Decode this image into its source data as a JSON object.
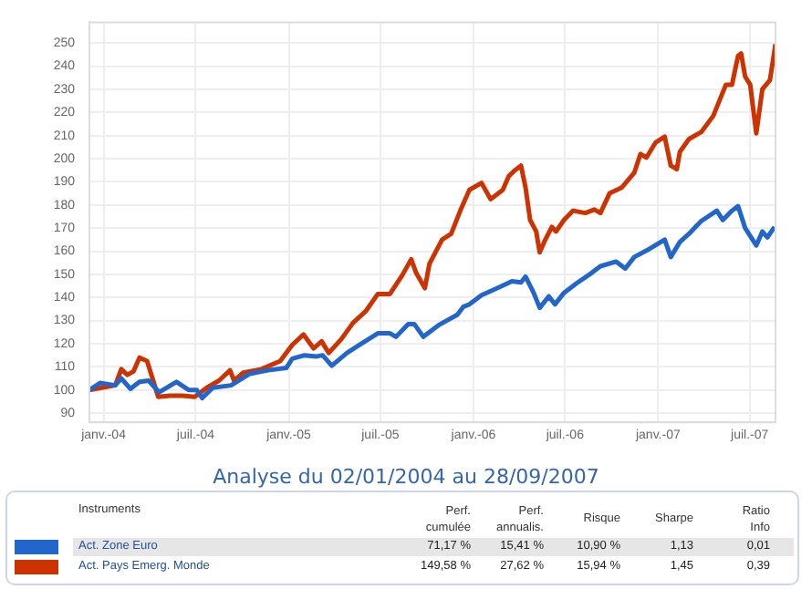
{
  "chart_data": {
    "type": "line",
    "title": "Analyse du 02/01/2004 au 28/09/2007",
    "xlim": [
      "2003-12-04",
      "2007-08-21"
    ],
    "xticks": [
      {
        "value": "2004-01-01",
        "label": "janv.-04"
      },
      {
        "value": "2004-07-01",
        "label": "juil.-04"
      },
      {
        "value": "2005-01-01",
        "label": "janv.-05"
      },
      {
        "value": "2005-07-01",
        "label": "juil.-05"
      },
      {
        "value": "2006-01-01",
        "label": "janv.-06"
      },
      {
        "value": "2006-07-01",
        "label": "juil.-06"
      },
      {
        "value": "2007-01-01",
        "label": "janv.-07"
      },
      {
        "value": "2007-07-01",
        "label": "juil.-07"
      }
    ],
    "ylim": [
      86,
      259
    ],
    "yticks": [
      90,
      100,
      110,
      120,
      130,
      140,
      150,
      160,
      170,
      180,
      190,
      200,
      210,
      220,
      230,
      240,
      250
    ],
    "grid": true,
    "legend": "bottom",
    "marker": "none",
    "line_style": "solid",
    "series": [
      {
        "name": "Act. Zone Euro",
        "color": "#2266cc",
        "x": [
          "2003-12-04",
          "2003-12-25",
          "2004-01-24",
          "2004-02-05",
          "2004-02-23",
          "2004-03-12",
          "2004-03-30",
          "2004-04-20",
          "2004-05-24",
          "2004-06-17",
          "2004-07-03",
          "2004-07-14",
          "2004-08-04",
          "2004-09-09",
          "2004-10-16",
          "2004-11-21",
          "2004-12-27",
          "2005-01-08",
          "2005-02-01",
          "2005-02-25",
          "2005-03-09",
          "2005-03-27",
          "2005-04-26",
          "2005-05-21",
          "2005-06-26",
          "2005-07-20",
          "2005-08-01",
          "2005-08-25",
          "2005-09-06",
          "2005-09-24",
          "2005-10-24",
          "2005-11-30",
          "2005-12-12",
          "2005-12-24",
          "2006-01-17",
          "2006-02-22",
          "2006-03-18",
          "2006-04-05",
          "2006-04-14",
          "2006-04-30",
          "2006-05-12",
          "2006-05-30",
          "2006-06-11",
          "2006-06-29",
          "2006-07-23",
          "2006-08-22",
          "2006-09-09",
          "2006-10-10",
          "2006-10-28",
          "2006-11-15",
          "2006-12-15",
          "2007-01-14",
          "2007-01-26",
          "2007-02-13",
          "2007-03-03",
          "2007-03-27",
          "2007-04-27",
          "2007-05-09",
          "2007-05-27",
          "2007-06-08",
          "2007-06-22",
          "2007-07-14",
          "2007-07-26",
          "2007-08-05",
          "2007-08-19"
        ],
        "values": [
          100,
          103,
          102,
          105,
          100.5,
          103.5,
          104,
          99,
          103.5,
          100,
          100,
          96.5,
          101,
          102,
          107,
          108.5,
          109.5,
          113.5,
          115,
          114.5,
          115,
          110.5,
          116,
          119.5,
          124.5,
          124.5,
          123,
          128.5,
          128.5,
          123,
          128,
          132.5,
          136,
          137,
          141,
          144.5,
          147,
          146.5,
          149,
          142,
          135.5,
          140.5,
          137,
          142,
          146,
          150.5,
          153.5,
          155.5,
          152.5,
          157.5,
          161,
          165,
          157.5,
          164,
          167.5,
          173,
          177.5,
          173.5,
          177.5,
          179.5,
          170,
          162.5,
          168.5,
          166,
          170.5
        ]
      },
      {
        "name": "Act. Pays Emerg. Monde",
        "color": "#cc3300",
        "x": [
          "2003-12-04",
          "2004-01-24",
          "2004-02-05",
          "2004-02-17",
          "2004-02-29",
          "2004-03-12",
          "2004-03-27",
          "2004-04-18",
          "2004-05-11",
          "2004-06-05",
          "2004-06-29",
          "2004-07-23",
          "2004-08-16",
          "2004-09-07",
          "2004-09-15",
          "2004-10-03",
          "2004-11-08",
          "2004-12-15",
          "2005-01-08",
          "2005-01-30",
          "2005-02-19",
          "2005-03-07",
          "2005-03-21",
          "2005-04-15",
          "2005-05-08",
          "2005-06-02",
          "2005-06-26",
          "2005-07-20",
          "2005-08-13",
          "2005-08-31",
          "2005-09-10",
          "2005-09-27",
          "2005-10-06",
          "2005-10-31",
          "2005-11-18",
          "2005-12-06",
          "2005-12-24",
          "2006-01-17",
          "2006-02-04",
          "2006-02-28",
          "2006-03-12",
          "2006-03-24",
          "2006-04-05",
          "2006-04-14",
          "2006-04-23",
          "2006-05-05",
          "2006-05-12",
          "2006-05-23",
          "2006-06-05",
          "2006-06-13",
          "2006-06-29",
          "2006-07-17",
          "2006-08-10",
          "2006-08-28",
          "2006-09-09",
          "2006-09-27",
          "2006-10-21",
          "2006-11-15",
          "2006-11-27",
          "2006-12-09",
          "2006-12-27",
          "2007-01-14",
          "2007-01-26",
          "2007-02-07",
          "2007-02-13",
          "2007-03-03",
          "2007-03-27",
          "2007-04-20",
          "2007-05-02",
          "2007-05-15",
          "2007-05-27",
          "2007-06-08",
          "2007-06-14",
          "2007-06-22",
          "2007-07-02",
          "2007-07-14",
          "2007-07-26",
          "2007-08-10",
          "2007-08-21"
        ],
        "values": [
          100,
          102,
          109,
          106.5,
          108,
          114,
          112.5,
          97,
          97.5,
          97.5,
          97,
          101,
          104,
          108.5,
          104,
          107.5,
          109,
          112.5,
          119.5,
          124,
          118,
          121,
          116,
          122,
          129,
          134,
          141.5,
          141.5,
          149.5,
          156.5,
          150.5,
          144,
          154.5,
          165,
          167.5,
          177.5,
          186.5,
          189.5,
          182.5,
          186.5,
          192.5,
          195,
          197,
          187.5,
          173.5,
          168.5,
          159.5,
          165,
          170.5,
          168.5,
          173.5,
          177.5,
          176.5,
          178,
          176.5,
          185,
          187.5,
          194,
          202,
          200.5,
          207,
          209.5,
          197,
          195.5,
          203,
          208.5,
          211.5,
          218.5,
          225,
          232,
          232,
          244.5,
          245.5,
          235.5,
          232,
          211,
          230,
          234,
          249.5
        ]
      }
    ],
    "annotations": [
      "Instruments",
      "Perf. cumulée",
      "Perf. annualis.",
      "Risque",
      "Sharpe",
      "Ratio Info",
      "71,17 %",
      "15,41 %",
      "10,90 %",
      "1,13",
      "0,01",
      "149,58 %",
      "27,62 %",
      "15,94 %",
      "1,45",
      "0,39"
    ]
  }
}
